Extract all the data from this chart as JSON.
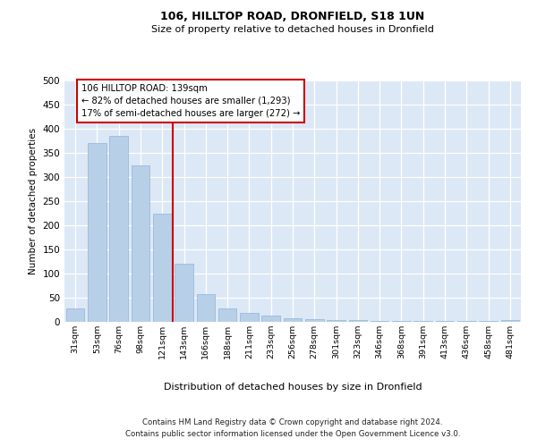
{
  "title1": "106, HILLTOP ROAD, DRONFIELD, S18 1UN",
  "title2": "Size of property relative to detached houses in Dronfield",
  "xlabel": "Distribution of detached houses by size in Dronfield",
  "ylabel": "Number of detached properties",
  "categories": [
    "31sqm",
    "53sqm",
    "76sqm",
    "98sqm",
    "121sqm",
    "143sqm",
    "166sqm",
    "188sqm",
    "211sqm",
    "233sqm",
    "256sqm",
    "278sqm",
    "301sqm",
    "323sqm",
    "346sqm",
    "368sqm",
    "391sqm",
    "413sqm",
    "436sqm",
    "458sqm",
    "481sqm"
  ],
  "values": [
    27,
    370,
    385,
    325,
    225,
    120,
    57,
    27,
    18,
    13,
    7,
    5,
    4,
    3,
    2,
    2,
    1,
    1,
    1,
    1,
    3
  ],
  "bar_color": "#b8cfe8",
  "bar_edge_color": "#90b4d8",
  "annotation_text": "106 HILLTOP ROAD: 139sqm\n← 82% of detached houses are smaller (1,293)\n17% of semi-detached houses are larger (272) →",
  "annotation_box_color": "#ffffff",
  "annotation_box_edge": "#cc0000",
  "ymax": 500,
  "yticks": [
    0,
    50,
    100,
    150,
    200,
    250,
    300,
    350,
    400,
    450,
    500
  ],
  "footer1": "Contains HM Land Registry data © Crown copyright and database right 2024.",
  "footer2": "Contains public sector information licensed under the Open Government Licence v3.0.",
  "bg_color": "#dce8f5",
  "vline_color": "#cc0000"
}
